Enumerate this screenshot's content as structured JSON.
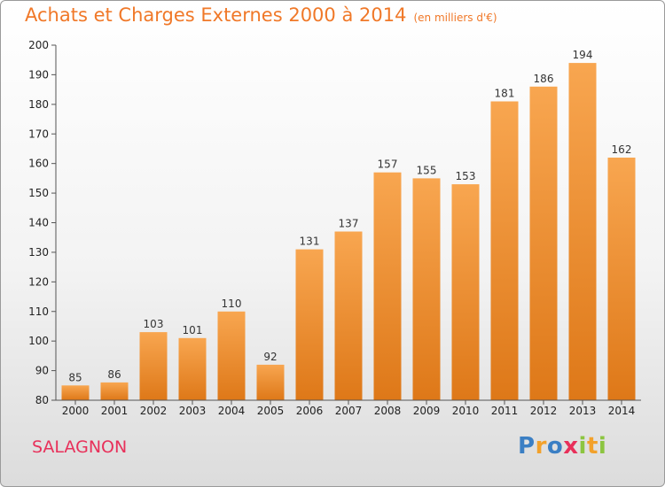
{
  "title": "Achats et Charges Externes 2000 à 2014",
  "subtitle": "(en milliers d'€)",
  "commune": "SALAGNON",
  "logo": {
    "letters": [
      {
        "ch": "P",
        "color": "#3b7fc4"
      },
      {
        "ch": "r",
        "color": "#f2a12b"
      },
      {
        "ch": "o",
        "color": "#3b7fc4"
      },
      {
        "ch": "x",
        "color": "#e8305a"
      },
      {
        "ch": "i",
        "color": "#8cc540"
      },
      {
        "ch": "t",
        "color": "#f2a12b"
      },
      {
        "ch": "i",
        "color": "#8cc540"
      }
    ]
  },
  "colors": {
    "bar_top": "#f8a650",
    "bar_bottom": "#de7818",
    "title": "#f07828",
    "commune": "#e8305a"
  },
  "chart_data": {
    "type": "bar",
    "title": "Achats et Charges Externes 2000 à 2014",
    "subtitle": "(en milliers d'€)",
    "categories": [
      "2000",
      "2001",
      "2002",
      "2003",
      "2004",
      "2005",
      "2006",
      "2007",
      "2008",
      "2009",
      "2010",
      "2011",
      "2012",
      "2013",
      "2014"
    ],
    "values": [
      85,
      86,
      103,
      101,
      110,
      92,
      131,
      137,
      157,
      155,
      153,
      181,
      186,
      194,
      162
    ],
    "ylim": [
      80,
      200
    ],
    "yticks": [
      80,
      90,
      100,
      110,
      120,
      130,
      140,
      150,
      160,
      170,
      180,
      190,
      200
    ],
    "grid": false,
    "legend": "none"
  }
}
